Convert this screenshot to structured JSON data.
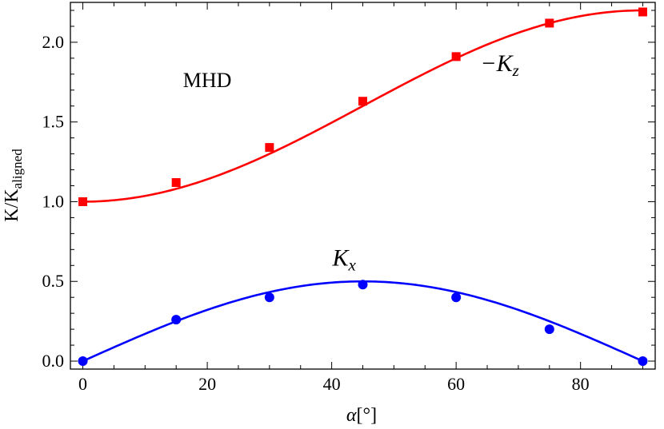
{
  "chart_data": {
    "type": "scatter",
    "title": "",
    "xlabel": {
      "main": "α",
      "unit": "[°]"
    },
    "ylabel": {
      "main": "K/K",
      "sub": "aligned"
    },
    "xlim": [
      -2,
      92
    ],
    "ylim": [
      -0.05,
      2.25
    ],
    "xticks": [
      0,
      20,
      40,
      60,
      80
    ],
    "xtick_labels": [
      "0",
      "20",
      "40",
      "60",
      "80"
    ],
    "yticks": [
      0.0,
      0.5,
      1.0,
      1.5,
      2.0
    ],
    "ytick_labels": [
      "0.0",
      "0.5",
      "1.0",
      "1.5",
      "2.0"
    ],
    "grid": false,
    "series": [
      {
        "name": "−K_z",
        "color": "#ff0000",
        "marker": "square",
        "x": [
          0,
          15,
          30,
          45,
          60,
          75,
          90
        ],
        "y": [
          1.0,
          1.12,
          1.34,
          1.63,
          1.91,
          2.12,
          2.19
        ],
        "fit": {
          "form": "1 + 1.2·sin²(α)",
          "color": "#ff0000"
        }
      },
      {
        "name": "K_x",
        "color": "#0000ff",
        "marker": "circle",
        "x": [
          0,
          15,
          30,
          45,
          60,
          75,
          90
        ],
        "y": [
          0.0,
          0.26,
          0.4,
          0.48,
          0.4,
          0.2,
          0.0
        ],
        "fit": {
          "form": "0.5·sin(2α)",
          "color": "#0000ff"
        }
      }
    ],
    "annotations": [
      {
        "text": "MHD",
        "x": 20,
        "y": 1.72
      },
      {
        "text_main": "−K",
        "text_sub": "z",
        "x": 67,
        "y": 1.82
      },
      {
        "text_main": "K",
        "text_sub": "x",
        "x": 42,
        "y": 0.6
      }
    ]
  }
}
